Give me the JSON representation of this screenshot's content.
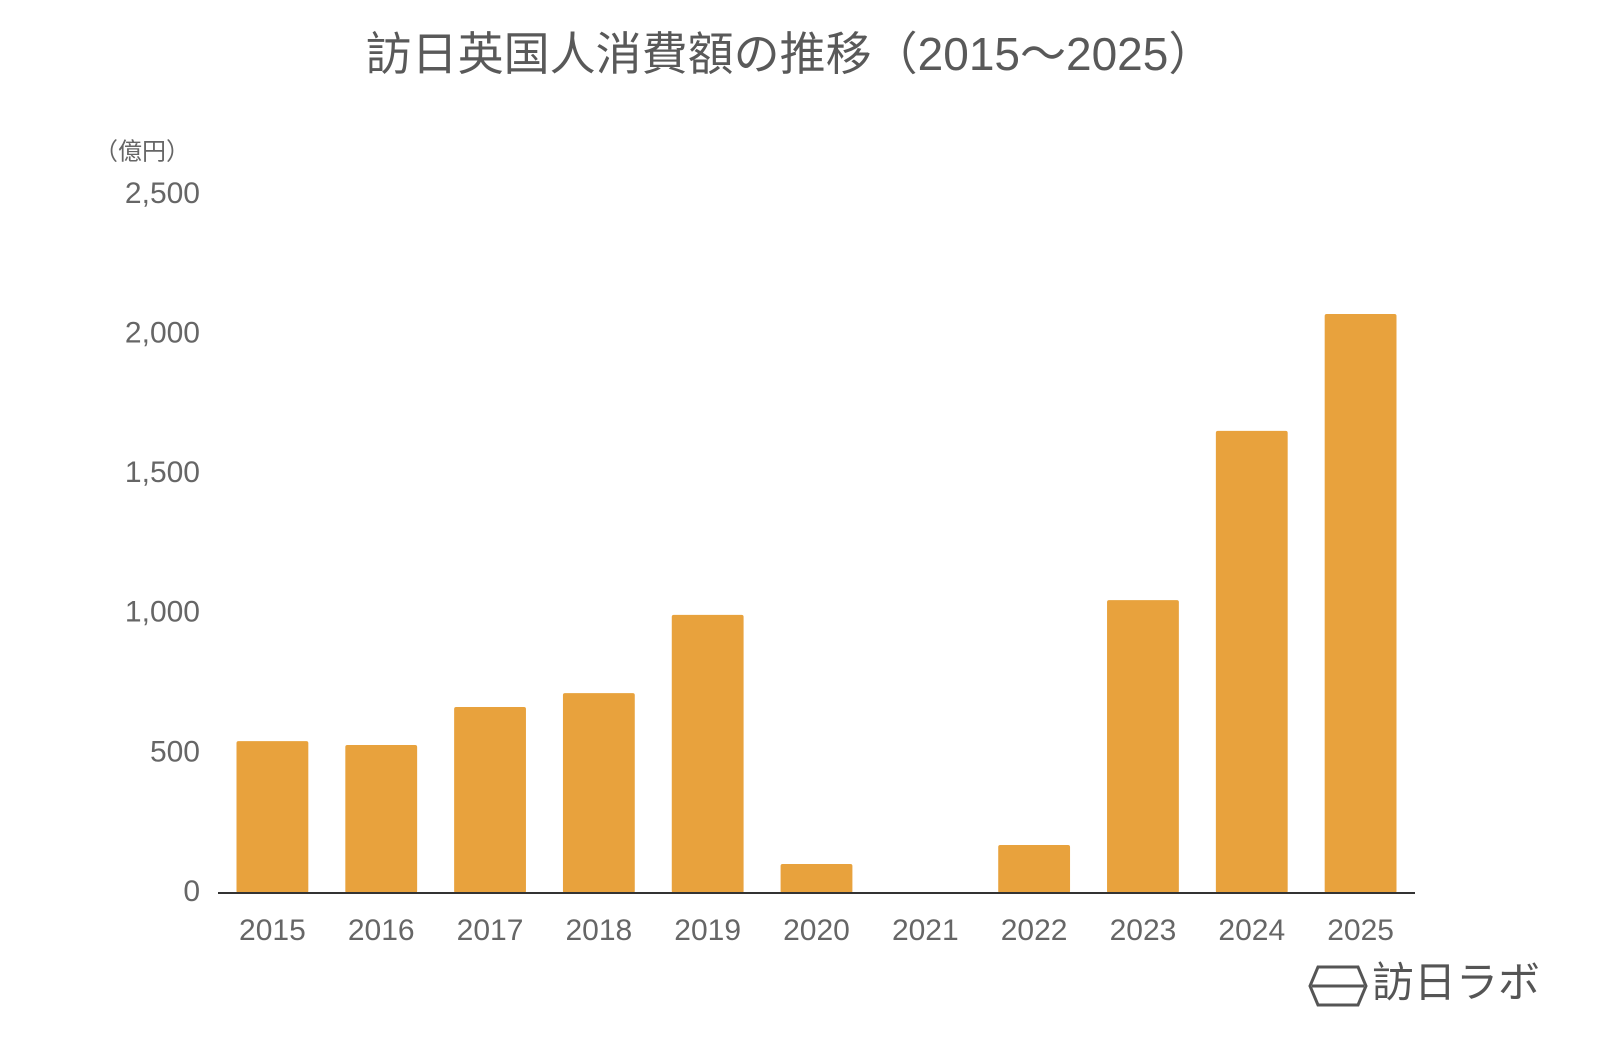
{
  "chart_data": {
    "type": "bar",
    "title": "訪日英国人消費額の推移（2015～2025）",
    "y_label": "（億円）",
    "categories": [
      "2015",
      "2016",
      "2017",
      "2018",
      "2019",
      "2020",
      "2021",
      "2022",
      "2023",
      "2024",
      "2025"
    ],
    "values": [
      544,
      530,
      666,
      716,
      996,
      104,
      0,
      172,
      1049,
      1655,
      2074
    ],
    "color": "#e8a23d",
    "ylim": [
      0,
      2500
    ],
    "yticks": [
      0,
      500,
      {
        "value": 1000,
        "label": "1,000"
      },
      {
        "value": 1500,
        "label": "1,500"
      },
      {
        "value": 2000,
        "label": "2,000"
      },
      {
        "value": 2500,
        "label": "2,500"
      }
    ],
    "grid": false,
    "logo": "訪日ラボ"
  }
}
